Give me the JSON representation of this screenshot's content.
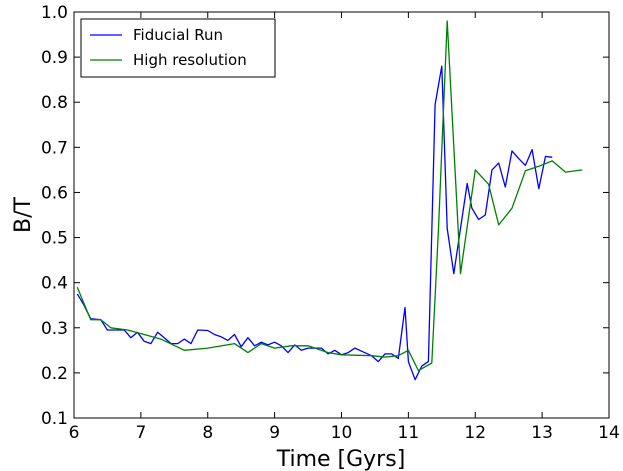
{
  "chart_data": {
    "type": "line",
    "xlabel": "Time [Gyrs]",
    "ylabel": "B/T",
    "xlim": [
      6,
      14
    ],
    "ylim": [
      0.1,
      1.0
    ],
    "xticks": [
      "6",
      "7",
      "8",
      "9",
      "10",
      "11",
      "12",
      "13",
      "14"
    ],
    "yticks": [
      "0.1",
      "0.2",
      "0.3",
      "0.4",
      "0.5",
      "0.6",
      "0.7",
      "0.8",
      "0.9",
      "1.0"
    ],
    "grid": false,
    "legend_position": "top-left",
    "series": [
      {
        "name": "Fiducial Run",
        "color": "#0000ff",
        "x": [
          6.05,
          6.15,
          6.25,
          6.4,
          6.5,
          6.6,
          6.75,
          6.85,
          6.95,
          7.05,
          7.15,
          7.25,
          7.35,
          7.45,
          7.55,
          7.65,
          7.75,
          7.85,
          8.0,
          8.1,
          8.2,
          8.3,
          8.4,
          8.5,
          8.6,
          8.7,
          8.8,
          8.9,
          9.0,
          9.1,
          9.2,
          9.3,
          9.4,
          9.5,
          9.6,
          9.7,
          9.8,
          9.9,
          10.0,
          10.1,
          10.2,
          10.3,
          10.45,
          10.55,
          10.65,
          10.75,
          10.85,
          10.95,
          11.0,
          11.1,
          11.2,
          11.3,
          11.4,
          11.5,
          11.58,
          11.68,
          11.78,
          11.88,
          11.95,
          12.05,
          12.15,
          12.25,
          12.35,
          12.45,
          12.55,
          12.65,
          12.75,
          12.85,
          12.95,
          13.05,
          13.15,
          13.25,
          13.35
        ],
        "y": [
          0.375,
          0.35,
          0.32,
          0.318,
          0.295,
          0.295,
          0.295,
          0.278,
          0.29,
          0.27,
          0.265,
          0.29,
          0.278,
          0.265,
          0.265,
          0.275,
          0.265,
          0.295,
          0.294,
          0.285,
          0.28,
          0.272,
          0.285,
          0.258,
          0.278,
          0.26,
          0.268,
          0.262,
          0.268,
          0.26,
          0.245,
          0.262,
          0.25,
          0.255,
          0.255,
          0.255,
          0.242,
          0.25,
          0.24,
          0.245,
          0.255,
          0.248,
          0.238,
          0.225,
          0.242,
          0.242,
          0.232,
          0.345,
          0.225,
          0.185,
          0.215,
          0.225,
          0.795,
          0.88,
          0.52,
          0.42,
          0.52,
          0.62,
          0.565,
          0.54,
          0.55,
          0.65,
          0.665,
          0.612,
          0.692,
          0.675,
          0.66,
          0.695,
          0.608,
          0.68,
          0.678,
          null,
          null
        ],
        "x_trim": 71
      },
      {
        "name": "High resolution",
        "color": "#008000",
        "x": [
          6.05,
          6.25,
          6.4,
          6.55,
          6.8,
          7.05,
          7.3,
          7.65,
          8.0,
          8.4,
          8.6,
          8.8,
          9.0,
          9.25,
          9.5,
          9.8,
          10.0,
          10.45,
          10.65,
          10.85,
          11.0,
          11.15,
          11.35,
          11.45,
          11.58,
          11.78,
          12.0,
          12.2,
          12.35,
          12.55,
          12.75,
          12.95,
          13.15,
          13.35,
          13.6
        ],
        "y": [
          0.39,
          0.318,
          0.318,
          0.3,
          0.295,
          0.285,
          0.275,
          0.25,
          0.255,
          0.265,
          0.245,
          0.265,
          0.255,
          0.26,
          0.26,
          0.245,
          0.24,
          0.238,
          0.235,
          0.238,
          0.25,
          0.205,
          0.222,
          0.52,
          0.98,
          0.42,
          0.65,
          0.618,
          0.528,
          0.565,
          0.648,
          0.658,
          0.67,
          0.645,
          0.65
        ]
      }
    ]
  }
}
